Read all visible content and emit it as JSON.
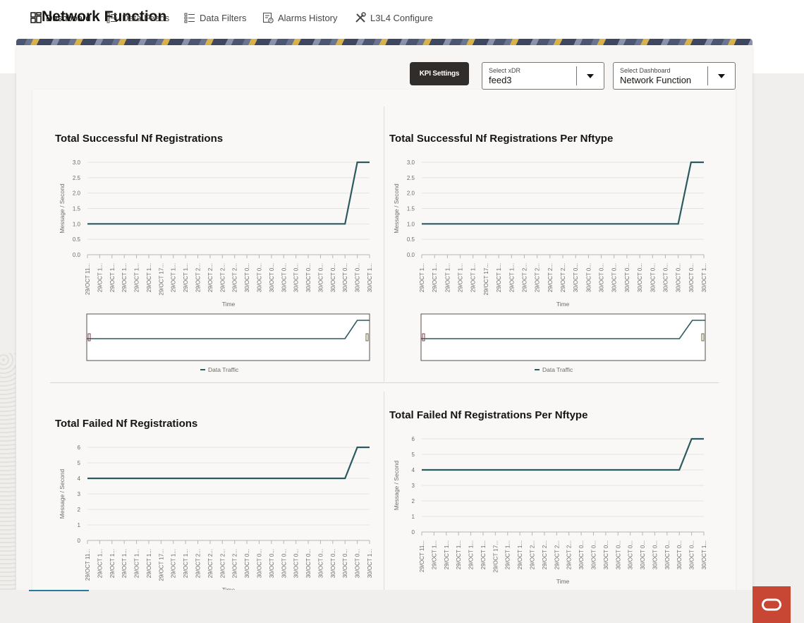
{
  "page": {
    "title": "Network Function"
  },
  "toolbar": {
    "kpi_settings_label": "KPI Settings"
  },
  "select_xdr": {
    "label": "Select xDR",
    "value": "feed3"
  },
  "select_dashboard": {
    "label": "Select Dashboard",
    "value": "Network Function"
  },
  "nav": {
    "items": [
      {
        "label": "Dashboard",
        "icon": "dashboard-icon",
        "active": true
      },
      {
        "label": "Data Feeds",
        "icon": "list-icon",
        "active": false
      },
      {
        "label": "Data Filters",
        "icon": "list-icon",
        "active": false
      },
      {
        "label": "Alarms History",
        "icon": "alarm-history-icon",
        "active": false
      },
      {
        "label": "L3L4 Configure",
        "icon": "tools-icon",
        "active": false
      }
    ]
  },
  "colors": {
    "series": "#2b5a5f",
    "brand": "#c74634",
    "accent": "#227e9e"
  },
  "chart_data": [
    {
      "type": "line",
      "title": "Total Successful Nf Registrations",
      "xlabel": "Time",
      "ylabel": "Message / Second",
      "yticks": [
        "0.0",
        "0.5",
        "1.0",
        "1.5",
        "2.0",
        "2.5",
        "3.0"
      ],
      "ylim": [
        0,
        3
      ],
      "categories": [
        "29/OCT 11...",
        "29/OCT 1...",
        "29/OCT 1...",
        "29/OCT 1...",
        "29/OCT 1...",
        "29/OCT 1...",
        "29/OCT 17...",
        "29/OCT 1...",
        "29/OCT 1...",
        "29/OCT 2...",
        "29/OCT 2...",
        "29/OCT 2...",
        "29/OCT 2...",
        "30/OCT 0...",
        "30/OCT 0...",
        "30/OCT 0...",
        "30/OCT 0...",
        "30/OCT 0...",
        "30/OCT 0...",
        "30/OCT 0...",
        "30/OCT 0...",
        "30/OCT 0...",
        "30/OCT 0...",
        "30/OCT 1..."
      ],
      "series": [
        {
          "name": "Data Traffic",
          "values": [
            1,
            1,
            1,
            1,
            1,
            1,
            1,
            1,
            1,
            1,
            1,
            1,
            1,
            1,
            1,
            1,
            1,
            1,
            1,
            1,
            1,
            1,
            3,
            3
          ]
        }
      ],
      "legend": "bottom-center",
      "overview": true
    },
    {
      "type": "line",
      "title": "Total Successful Nf Registrations Per Nftype",
      "xlabel": "Time",
      "ylabel": "Message / Second",
      "yticks": [
        "0.0",
        "0.5",
        "1.0",
        "1.5",
        "2.0",
        "2.5",
        "3.0"
      ],
      "ylim": [
        0,
        3
      ],
      "categories": [
        "29/OCT 1...",
        "29/OCT 1...",
        "29/OCT 1...",
        "29/OCT 1...",
        "29/OCT 1...",
        "29/OCT 17...",
        "29/OCT 1...",
        "29/OCT 1...",
        "29/OCT 2...",
        "29/OCT 2...",
        "29/OCT 2...",
        "29/OCT 2...",
        "30/OCT 0...",
        "30/OCT 0...",
        "30/OCT 0...",
        "30/OCT 0...",
        "30/OCT 0...",
        "30/OCT 0...",
        "30/OCT 0...",
        "30/OCT 0...",
        "30/OCT 0...",
        "30/OCT 0...",
        "30/OCT 1..."
      ],
      "series": [
        {
          "name": "Data Traffic",
          "values": [
            1,
            1,
            1,
            1,
            1,
            1,
            1,
            1,
            1,
            1,
            1,
            1,
            1,
            1,
            1,
            1,
            1,
            1,
            1,
            1,
            1,
            3,
            3
          ]
        }
      ],
      "legend": "bottom-center",
      "overview": true
    },
    {
      "type": "line",
      "title": "Total Failed Nf Registrations",
      "xlabel": "Time",
      "ylabel": "Message / Second",
      "yticks": [
        "0",
        "1",
        "2",
        "3",
        "4",
        "5",
        "6"
      ],
      "ylim": [
        0,
        6
      ],
      "categories": [
        "29/OCT 11...",
        "29/OCT 1...",
        "29/OCT 1...",
        "29/OCT 1...",
        "29/OCT 1...",
        "29/OCT 1...",
        "29/OCT 17...",
        "29/OCT 1...",
        "29/OCT 1...",
        "29/OCT 2...",
        "29/OCT 2...",
        "29/OCT 2...",
        "29/OCT 2...",
        "30/OCT 0...",
        "30/OCT 0...",
        "30/OCT 0...",
        "30/OCT 0...",
        "30/OCT 0...",
        "30/OCT 0...",
        "30/OCT 0...",
        "30/OCT 0...",
        "30/OCT 0...",
        "30/OCT 0...",
        "30/OCT 1..."
      ],
      "series": [
        {
          "name": "Data Traffic",
          "values": [
            4,
            4,
            4,
            4,
            4,
            4,
            4,
            4,
            4,
            4,
            4,
            4,
            4,
            4,
            4,
            4,
            4,
            4,
            4,
            4,
            4,
            4,
            6,
            6
          ]
        }
      ],
      "legend": "none",
      "overview": false
    },
    {
      "type": "line",
      "title": "Total Failed Nf Registrations Per Nftype",
      "xlabel": "Time",
      "ylabel": "Message / Second",
      "yticks": [
        "0",
        "1",
        "2",
        "3",
        "4",
        "5",
        "6"
      ],
      "ylim": [
        0,
        6
      ],
      "categories": [
        "29/OCT 11...",
        "29/OCT 1...",
        "29/OCT 1...",
        "29/OCT 1...",
        "29/OCT 1...",
        "29/OCT 1...",
        "29/OCT 17...",
        "29/OCT 1...",
        "29/OCT 1...",
        "29/OCT 2...",
        "29/OCT 2...",
        "29/OCT 2...",
        "29/OCT 2...",
        "30/OCT 0...",
        "30/OCT 0...",
        "30/OCT 0...",
        "30/OCT 0...",
        "30/OCT 0...",
        "30/OCT 0...",
        "30/OCT 0...",
        "30/OCT 0...",
        "30/OCT 0...",
        "30/OCT 0...",
        "30/OCT 1..."
      ],
      "series": [
        {
          "name": "Data Traffic",
          "values": [
            4,
            4,
            4,
            4,
            4,
            4,
            4,
            4,
            4,
            4,
            4,
            4,
            4,
            4,
            4,
            4,
            4,
            4,
            4,
            4,
            4,
            4,
            6,
            6
          ]
        }
      ],
      "legend": "none",
      "overview": false
    }
  ]
}
